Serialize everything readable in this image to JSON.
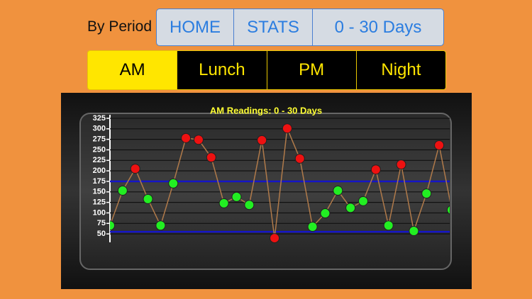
{
  "header": {
    "label": "By Period",
    "nav": [
      "HOME",
      "STATS",
      "0 - 30 Days"
    ]
  },
  "period_tabs": {
    "items": [
      "AM",
      "Lunch",
      "PM",
      "Night"
    ],
    "selected": 0
  },
  "chart_data": {
    "type": "line",
    "title": "AM Readings: 0 - 30 Days",
    "values": [
      70,
      153,
      205,
      133,
      70,
      170,
      278,
      274,
      232,
      123,
      138,
      119,
      273,
      40,
      301,
      229,
      67,
      99,
      153,
      112,
      128,
      203,
      70,
      215,
      57,
      146,
      261,
      107
    ],
    "line_color": "#b07a4a",
    "in_range_color": "#22ee22",
    "out_range_color": "#ee1111",
    "target_range": [
      55,
      175
    ],
    "target_color": "#1515c8",
    "ylim": [
      30,
      330
    ],
    "yticks": [
      50,
      75,
      100,
      125,
      150,
      175,
      200,
      225,
      250,
      275,
      300,
      325
    ],
    "grid": true
  }
}
